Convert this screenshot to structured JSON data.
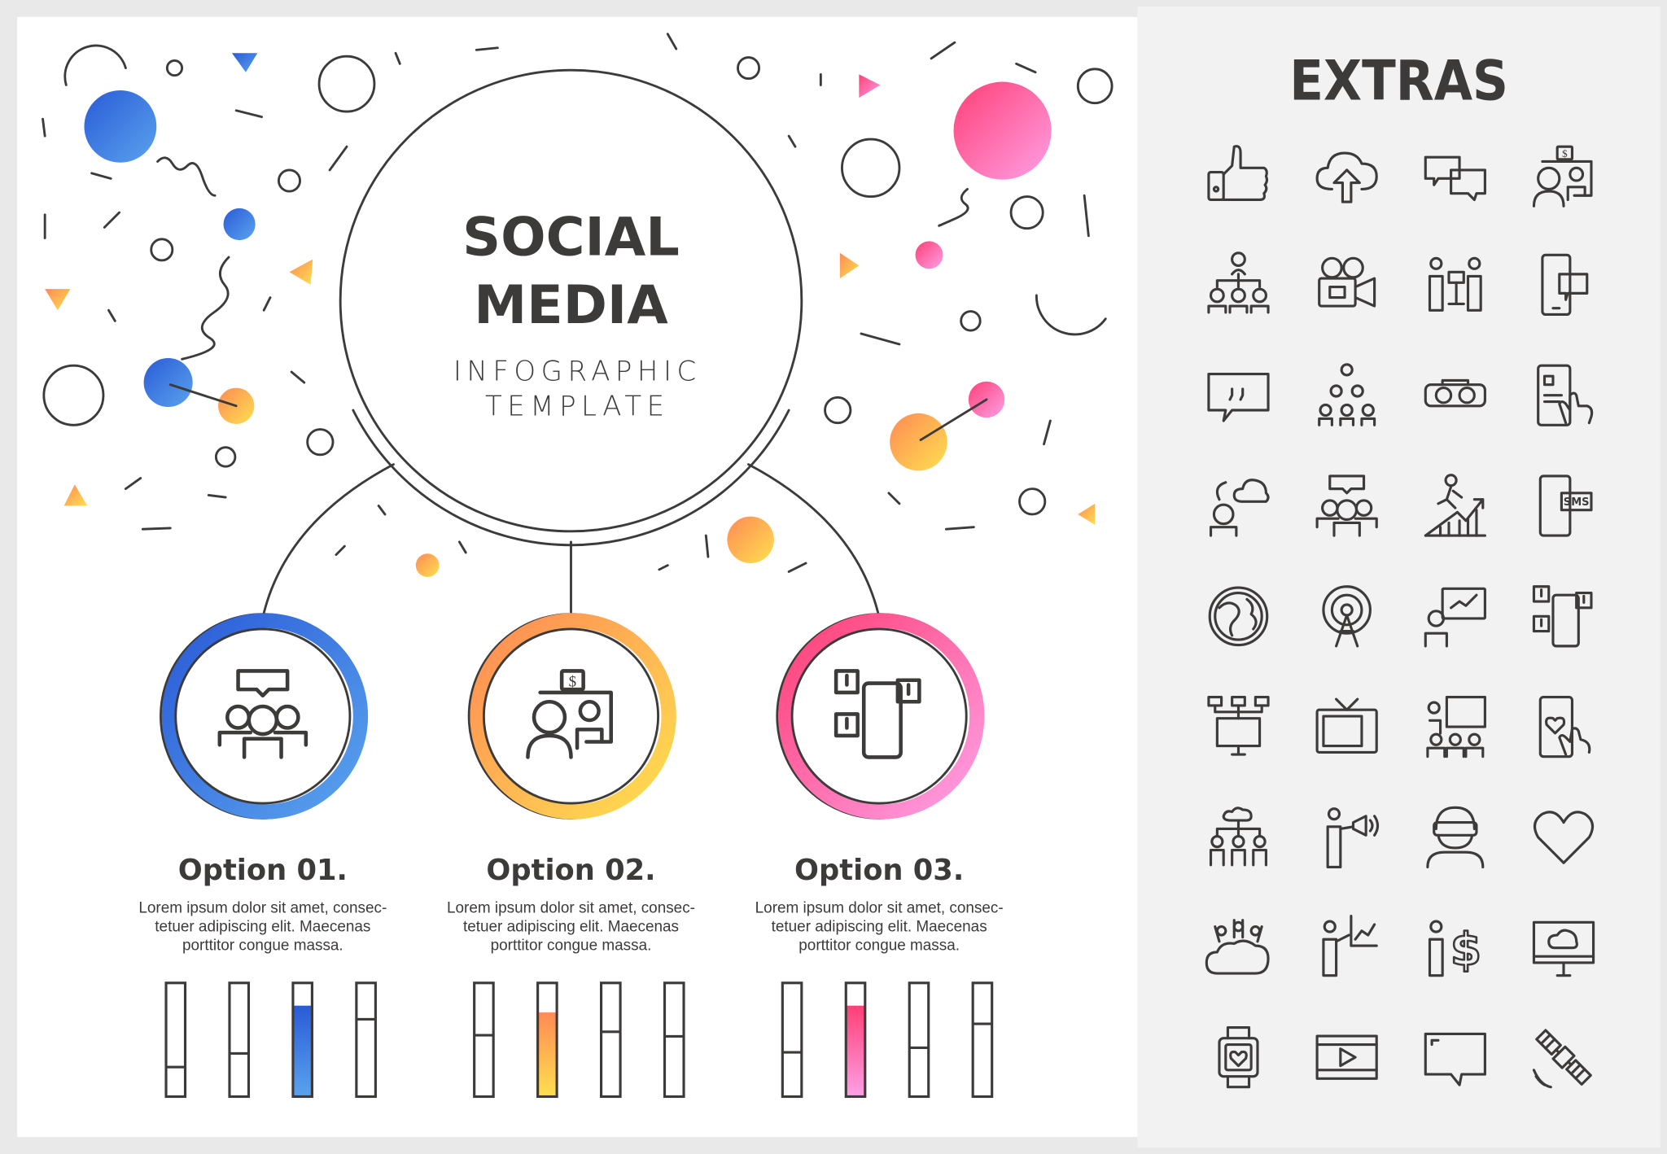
{
  "header": {
    "title_line1": "SOCIAL",
    "title_line2": "MEDIA",
    "subtitle_line1": "INFOGRAPHIC",
    "subtitle_line2": "TEMPLATE"
  },
  "options": [
    {
      "title": "Option 01.",
      "desc": [
        "Lorem ipsum dolor sit amet, consec-",
        "tetuer adipiscing elit. Maecenas",
        "porttitor congue massa."
      ],
      "icon": "team-chat-icon",
      "accent": [
        "#2a5bd7",
        "#5aa3ee"
      ],
      "bars": [
        0.26,
        0.38,
        0.8,
        0.68
      ],
      "highlight_bar": 2
    },
    {
      "title": "Option 02.",
      "desc": [
        "Lorem ipsum dolor sit amet, consec-",
        "tetuer adipiscing elit. Maecenas",
        "porttitor congue massa."
      ],
      "icon": "video-call-money-icon",
      "accent": [
        "#ff8a55",
        "#ffe04f"
      ],
      "bars": [
        0.54,
        0.74,
        0.57,
        0.53
      ],
      "highlight_bar": 1
    },
    {
      "title": "Option 03.",
      "desc": [
        "Lorem ipsum dolor sit amet, consec-",
        "tetuer adipiscing elit. Maecenas",
        "porttitor congue massa."
      ],
      "icon": "notifications-phone-icon",
      "accent": [
        "#ff3f76",
        "#ffa0e6"
      ],
      "bars": [
        0.39,
        0.8,
        0.43,
        0.64
      ],
      "highlight_bar": 1
    }
  ],
  "extras": {
    "title": "EXTRAS",
    "sms_label": "SMS",
    "icons": [
      "thumbs-up-icon",
      "cloud-upload-icon",
      "chat-bubbles-icon",
      "video-call-money-icon",
      "org-chart-icon",
      "video-camera-icon",
      "presentation-icon",
      "phone-message-icon",
      "quote-bubble-icon",
      "team-pyramid-icon",
      "vr-goggles-icon",
      "phone-touch-icon",
      "cloud-user-icon",
      "team-chat-icon",
      "growth-runner-icon",
      "phone-sms-icon",
      "globe-icon",
      "broadcast-tower-icon",
      "presentation-board-icon",
      "notifications-phone-icon",
      "network-monitor-icon",
      "tv-icon",
      "teacher-class-icon",
      "phone-heart-icon",
      "cloud-team-icon",
      "megaphone-person-icon",
      "vr-person-icon",
      "heart-icon",
      "cloud-crowd-icon",
      "person-chart-icon",
      "person-dollar-icon",
      "monitor-cloud-icon",
      "smartwatch-heart-icon",
      "video-player-icon",
      "speech-bubble-icon",
      "satellite-icon"
    ]
  },
  "colors": {
    "ink": "#3d3a3a",
    "panel": "#f2f2f2",
    "blue": "#3f7fe6",
    "orange": "#ffb04f",
    "pink": "#ff5f9c"
  }
}
